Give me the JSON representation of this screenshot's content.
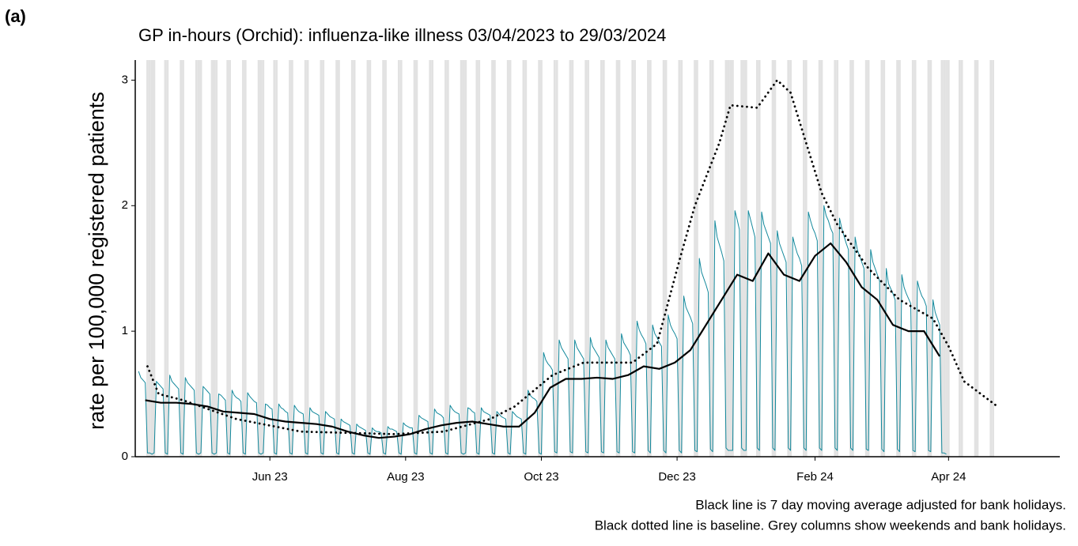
{
  "chart_data": {
    "type": "line",
    "panel_label": "(a)",
    "title": "GP in-hours (Orchid): influenza-like illness 03/04/2023 to 29/03/2024",
    "y_label": "rate per 100,000 registered patients",
    "notes": [
      "Black line is 7 day moving average adjusted for bank holidays.",
      "Black dotted line is baseline. Grey columns show weekends and bank holidays."
    ],
    "xlim": [
      -1.5,
      414
    ],
    "ylim": [
      0,
      3.16
    ],
    "xticks": [
      {
        "value": 59,
        "label": "Jun 23"
      },
      {
        "value": 120,
        "label": "Aug 23"
      },
      {
        "value": 181,
        "label": "Oct 23"
      },
      {
        "value": 242,
        "label": "Dec 23"
      },
      {
        "value": 304,
        "label": "Feb 24"
      },
      {
        "value": 364,
        "label": "Apr 24"
      }
    ],
    "yticks": [
      0,
      1,
      2,
      3
    ],
    "shade_color": "#e2e2e2",
    "shaded_days": [
      5,
      6,
      12,
      13,
      19,
      20,
      26,
      27,
      33,
      34,
      40,
      41,
      47,
      48,
      54,
      55,
      61,
      62,
      68,
      69,
      75,
      76,
      82,
      83,
      89,
      90,
      96,
      97,
      103,
      104,
      110,
      111,
      117,
      118,
      124,
      125,
      131,
      132,
      138,
      139,
      145,
      146,
      152,
      153,
      159,
      160,
      166,
      167,
      173,
      174,
      180,
      181,
      187,
      188,
      194,
      195,
      201,
      202,
      208,
      209,
      215,
      216,
      222,
      223,
      229,
      230,
      236,
      237,
      243,
      244,
      250,
      251,
      257,
      258,
      264,
      265,
      271,
      272,
      278,
      279,
      285,
      286,
      292,
      293,
      299,
      300,
      306,
      307,
      313,
      314,
      320,
      321,
      327,
      328,
      334,
      335,
      341,
      342,
      348,
      349,
      355,
      356,
      362,
      363,
      369,
      370,
      376,
      377,
      383,
      384,
      4,
      7,
      28,
      35,
      56,
      147,
      266,
      267,
      273,
      361,
      364
    ],
    "x": [
      0,
      1,
      2,
      3,
      4,
      5,
      6,
      7,
      8,
      9,
      10,
      11,
      12,
      13,
      14,
      15,
      16,
      17,
      18,
      19,
      20,
      21,
      22,
      23,
      24,
      25,
      26,
      27,
      28,
      29,
      30,
      31,
      32,
      33,
      34,
      35,
      36,
      37,
      38,
      39,
      40,
      41,
      42,
      43,
      44,
      45,
      46,
      47,
      48,
      49,
      50,
      51,
      52,
      53,
      54,
      55,
      56,
      57,
      58,
      59,
      60,
      61,
      62,
      63,
      64,
      65,
      66,
      67,
      68,
      69,
      70,
      71,
      72,
      73,
      74,
      75,
      76,
      77,
      78,
      79,
      80,
      81,
      82,
      83,
      84,
      85,
      86,
      87,
      88,
      89,
      90,
      91,
      92,
      93,
      94,
      95,
      96,
      97,
      98,
      99,
      100,
      101,
      102,
      103,
      104,
      105,
      106,
      107,
      108,
      109,
      110,
      111,
      112,
      113,
      114,
      115,
      116,
      117,
      118,
      119,
      120,
      121,
      122,
      123,
      124,
      125,
      126,
      127,
      128,
      129,
      130,
      131,
      132,
      133,
      134,
      135,
      136,
      137,
      138,
      139,
      140,
      141,
      142,
      143,
      144,
      145,
      146,
      147,
      148,
      149,
      150,
      151,
      152,
      153,
      154,
      155,
      156,
      157,
      158,
      159,
      160,
      161,
      162,
      163,
      164,
      165,
      166,
      167,
      168,
      169,
      170,
      171,
      172,
      173,
      174,
      175,
      176,
      177,
      178,
      179,
      180,
      181,
      182,
      183,
      184,
      185,
      186,
      187,
      188,
      189,
      190,
      191,
      192,
      193,
      194,
      195,
      196,
      197,
      198,
      199,
      200,
      201,
      202,
      203,
      204,
      205,
      206,
      207,
      208,
      209,
      210,
      211,
      212,
      213,
      214,
      215,
      216,
      217,
      218,
      219,
      220,
      221,
      222,
      223,
      224,
      225,
      226,
      227,
      228,
      229,
      230,
      231,
      232,
      233,
      234,
      235,
      236,
      237,
      238,
      239,
      240,
      241,
      242,
      243,
      244,
      245,
      246,
      247,
      248,
      249,
      250,
      251,
      252,
      253,
      254,
      255,
      256,
      257,
      258,
      259,
      260,
      261,
      262,
      263,
      264,
      265,
      266,
      267,
      268,
      269,
      270,
      271,
      272,
      273,
      274,
      275,
      276,
      277,
      278,
      279,
      280,
      281,
      282,
      283,
      284,
      285,
      286,
      287,
      288,
      289,
      290,
      291,
      292,
      293,
      294,
      295,
      296,
      297,
      298,
      299,
      300,
      301,
      302,
      303,
      304,
      305,
      306,
      307,
      308,
      309,
      310,
      311,
      312,
      313,
      314,
      315,
      316,
      317,
      318,
      319,
      320,
      321,
      322,
      323,
      324,
      325,
      326,
      327,
      328,
      329,
      330,
      331,
      332,
      333,
      334,
      335,
      336,
      337,
      338,
      339,
      340,
      341,
      342,
      343,
      344,
      345,
      346,
      347,
      348,
      349,
      350,
      351,
      352,
      353,
      354,
      355,
      356,
      357,
      358,
      359,
      360,
      361,
      362,
      363
    ],
    "series": [
      {
        "color": "#14899c",
        "dash": "solid",
        "width": 1,
        "values": [
          0.68,
          0.63,
          0.61,
          0.59,
          0.03,
          0.03,
          0.02,
          0.03,
          0.6,
          0.58,
          0.56,
          0.54,
          0.03,
          0.02,
          0.65,
          0.6,
          0.58,
          0.56,
          0.54,
          0.03,
          0.02,
          0.63,
          0.59,
          0.57,
          0.55,
          0.53,
          0.03,
          0.02,
          0.03,
          0.56,
          0.54,
          0.52,
          0.5,
          0.03,
          0.02,
          0.03,
          0.5,
          0.49,
          0.47,
          0.45,
          0.03,
          0.02,
          0.53,
          0.49,
          0.47,
          0.46,
          0.44,
          0.03,
          0.02,
          0.51,
          0.48,
          0.46,
          0.44,
          0.43,
          0.03,
          0.02,
          0.03,
          0.42,
          0.41,
          0.39,
          0.38,
          0.03,
          0.02,
          0.42,
          0.39,
          0.38,
          0.36,
          0.35,
          0.03,
          0.02,
          0.41,
          0.38,
          0.36,
          0.35,
          0.34,
          0.03,
          0.02,
          0.39,
          0.36,
          0.35,
          0.34,
          0.33,
          0.03,
          0.02,
          0.36,
          0.34,
          0.32,
          0.31,
          0.3,
          0.03,
          0.02,
          0.3,
          0.28,
          0.27,
          0.26,
          0.25,
          0.03,
          0.02,
          0.26,
          0.24,
          0.23,
          0.22,
          0.21,
          0.03,
          0.02,
          0.23,
          0.21,
          0.2,
          0.2,
          0.19,
          0.03,
          0.02,
          0.24,
          0.22,
          0.22,
          0.21,
          0.2,
          0.03,
          0.02,
          0.27,
          0.25,
          0.24,
          0.23,
          0.23,
          0.03,
          0.02,
          0.33,
          0.31,
          0.3,
          0.29,
          0.28,
          0.03,
          0.02,
          0.38,
          0.35,
          0.34,
          0.33,
          0.31,
          0.03,
          0.02,
          0.41,
          0.38,
          0.36,
          0.35,
          0.34,
          0.03,
          0.02,
          0.03,
          0.39,
          0.38,
          0.36,
          0.35,
          0.03,
          0.02,
          0.39,
          0.36,
          0.35,
          0.34,
          0.33,
          0.03,
          0.02,
          0.36,
          0.34,
          0.32,
          0.31,
          0.3,
          0.03,
          0.02,
          0.36,
          0.34,
          0.32,
          0.31,
          0.3,
          0.03,
          0.02,
          0.53,
          0.49,
          0.47,
          0.46,
          0.44,
          0.03,
          0.02,
          0.83,
          0.77,
          0.74,
          0.72,
          0.69,
          0.04,
          0.03,
          0.93,
          0.87,
          0.84,
          0.81,
          0.78,
          0.04,
          0.03,
          0.93,
          0.87,
          0.84,
          0.81,
          0.78,
          0.04,
          0.03,
          0.95,
          0.88,
          0.85,
          0.82,
          0.79,
          0.04,
          0.03,
          0.93,
          0.87,
          0.84,
          0.81,
          0.78,
          0.04,
          0.03,
          0.98,
          0.91,
          0.88,
          0.85,
          0.81,
          0.04,
          0.03,
          1.08,
          1.01,
          0.97,
          0.94,
          0.9,
          0.05,
          0.03,
          1.05,
          0.98,
          0.95,
          0.91,
          0.88,
          0.05,
          0.03,
          1.13,
          1.05,
          1.01,
          0.98,
          0.94,
          0.05,
          0.03,
          1.28,
          1.19,
          1.15,
          1.11,
          1.06,
          0.05,
          0.04,
          1.58,
          1.47,
          1.42,
          1.37,
          1.31,
          0.06,
          0.04,
          1.88,
          1.75,
          1.69,
          1.63,
          1.56,
          0.07,
          0.05,
          0.05,
          0.05,
          1.96,
          1.89,
          1.81,
          0.07,
          0.05,
          0.05,
          1.96,
          1.89,
          1.82,
          1.75,
          0.07,
          0.05,
          1.95,
          1.85,
          1.8,
          1.75,
          1.7,
          0.07,
          0.05,
          1.8,
          1.7,
          1.65,
          1.6,
          1.55,
          0.07,
          0.05,
          1.75,
          1.68,
          1.62,
          1.58,
          1.52,
          0.07,
          0.05,
          1.95,
          1.88,
          1.82,
          1.78,
          1.72,
          0.07,
          0.05,
          2.0,
          1.92,
          1.88,
          1.82,
          1.78,
          0.07,
          0.05,
          1.9,
          1.82,
          1.76,
          1.7,
          1.65,
          0.07,
          0.05,
          1.75,
          1.65,
          1.6,
          1.55,
          1.5,
          0.06,
          0.05,
          1.65,
          1.55,
          1.5,
          1.45,
          1.4,
          0.06,
          0.04,
          1.5,
          1.38,
          1.34,
          1.3,
          1.25,
          0.06,
          0.04,
          1.45,
          1.35,
          1.3,
          1.26,
          1.22,
          0.05,
          0.04,
          1.4,
          1.33,
          1.28,
          1.25,
          1.2,
          0.05,
          0.04,
          1.25,
          1.15,
          1.1,
          1.05,
          0.03,
          0.03,
          0.02
        ]
      },
      {
        "color": "#000000",
        "dash": "solid",
        "width": 2.2,
        "x": [
          3,
          10,
          17,
          24,
          31,
          38,
          45,
          52,
          59,
          66,
          73,
          80,
          87,
          94,
          101,
          108,
          115,
          122,
          129,
          136,
          143,
          150,
          157,
          164,
          171,
          178,
          185,
          192,
          199,
          206,
          213,
          220,
          227,
          234,
          241,
          248,
          255,
          262,
          269,
          276,
          283,
          290,
          297,
          304,
          311,
          318,
          325,
          332,
          339,
          346,
          353,
          360
        ],
        "values": [
          0.45,
          0.43,
          0.43,
          0.42,
          0.4,
          0.36,
          0.35,
          0.34,
          0.3,
          0.28,
          0.27,
          0.26,
          0.24,
          0.2,
          0.17,
          0.15,
          0.16,
          0.18,
          0.22,
          0.25,
          0.27,
          0.28,
          0.26,
          0.24,
          0.24,
          0.35,
          0.55,
          0.62,
          0.62,
          0.63,
          0.62,
          0.65,
          0.72,
          0.7,
          0.75,
          0.85,
          1.05,
          1.25,
          1.45,
          1.4,
          1.62,
          1.45,
          1.4,
          1.6,
          1.7,
          1.55,
          1.35,
          1.25,
          1.05,
          1.0,
          1.0,
          0.8
        ]
      },
      {
        "color": "#000000",
        "dash": "dotted",
        "width": 2.2,
        "x": [
          4,
          9,
          20,
          44,
          73,
          115,
          137,
          158,
          169,
          186,
          200,
          222,
          233,
          243,
          250,
          261,
          266,
          278,
          287,
          293,
          300,
          307,
          314,
          328,
          342,
          357,
          364,
          371,
          386
        ],
        "values": [
          0.72,
          0.5,
          0.45,
          0.3,
          0.2,
          0.18,
          0.2,
          0.3,
          0.4,
          0.65,
          0.75,
          0.75,
          0.9,
          1.56,
          2.0,
          2.5,
          2.8,
          2.78,
          3.0,
          2.9,
          2.5,
          2.1,
          1.85,
          1.5,
          1.25,
          1.1,
          0.88,
          0.6,
          0.4
        ]
      }
    ]
  }
}
